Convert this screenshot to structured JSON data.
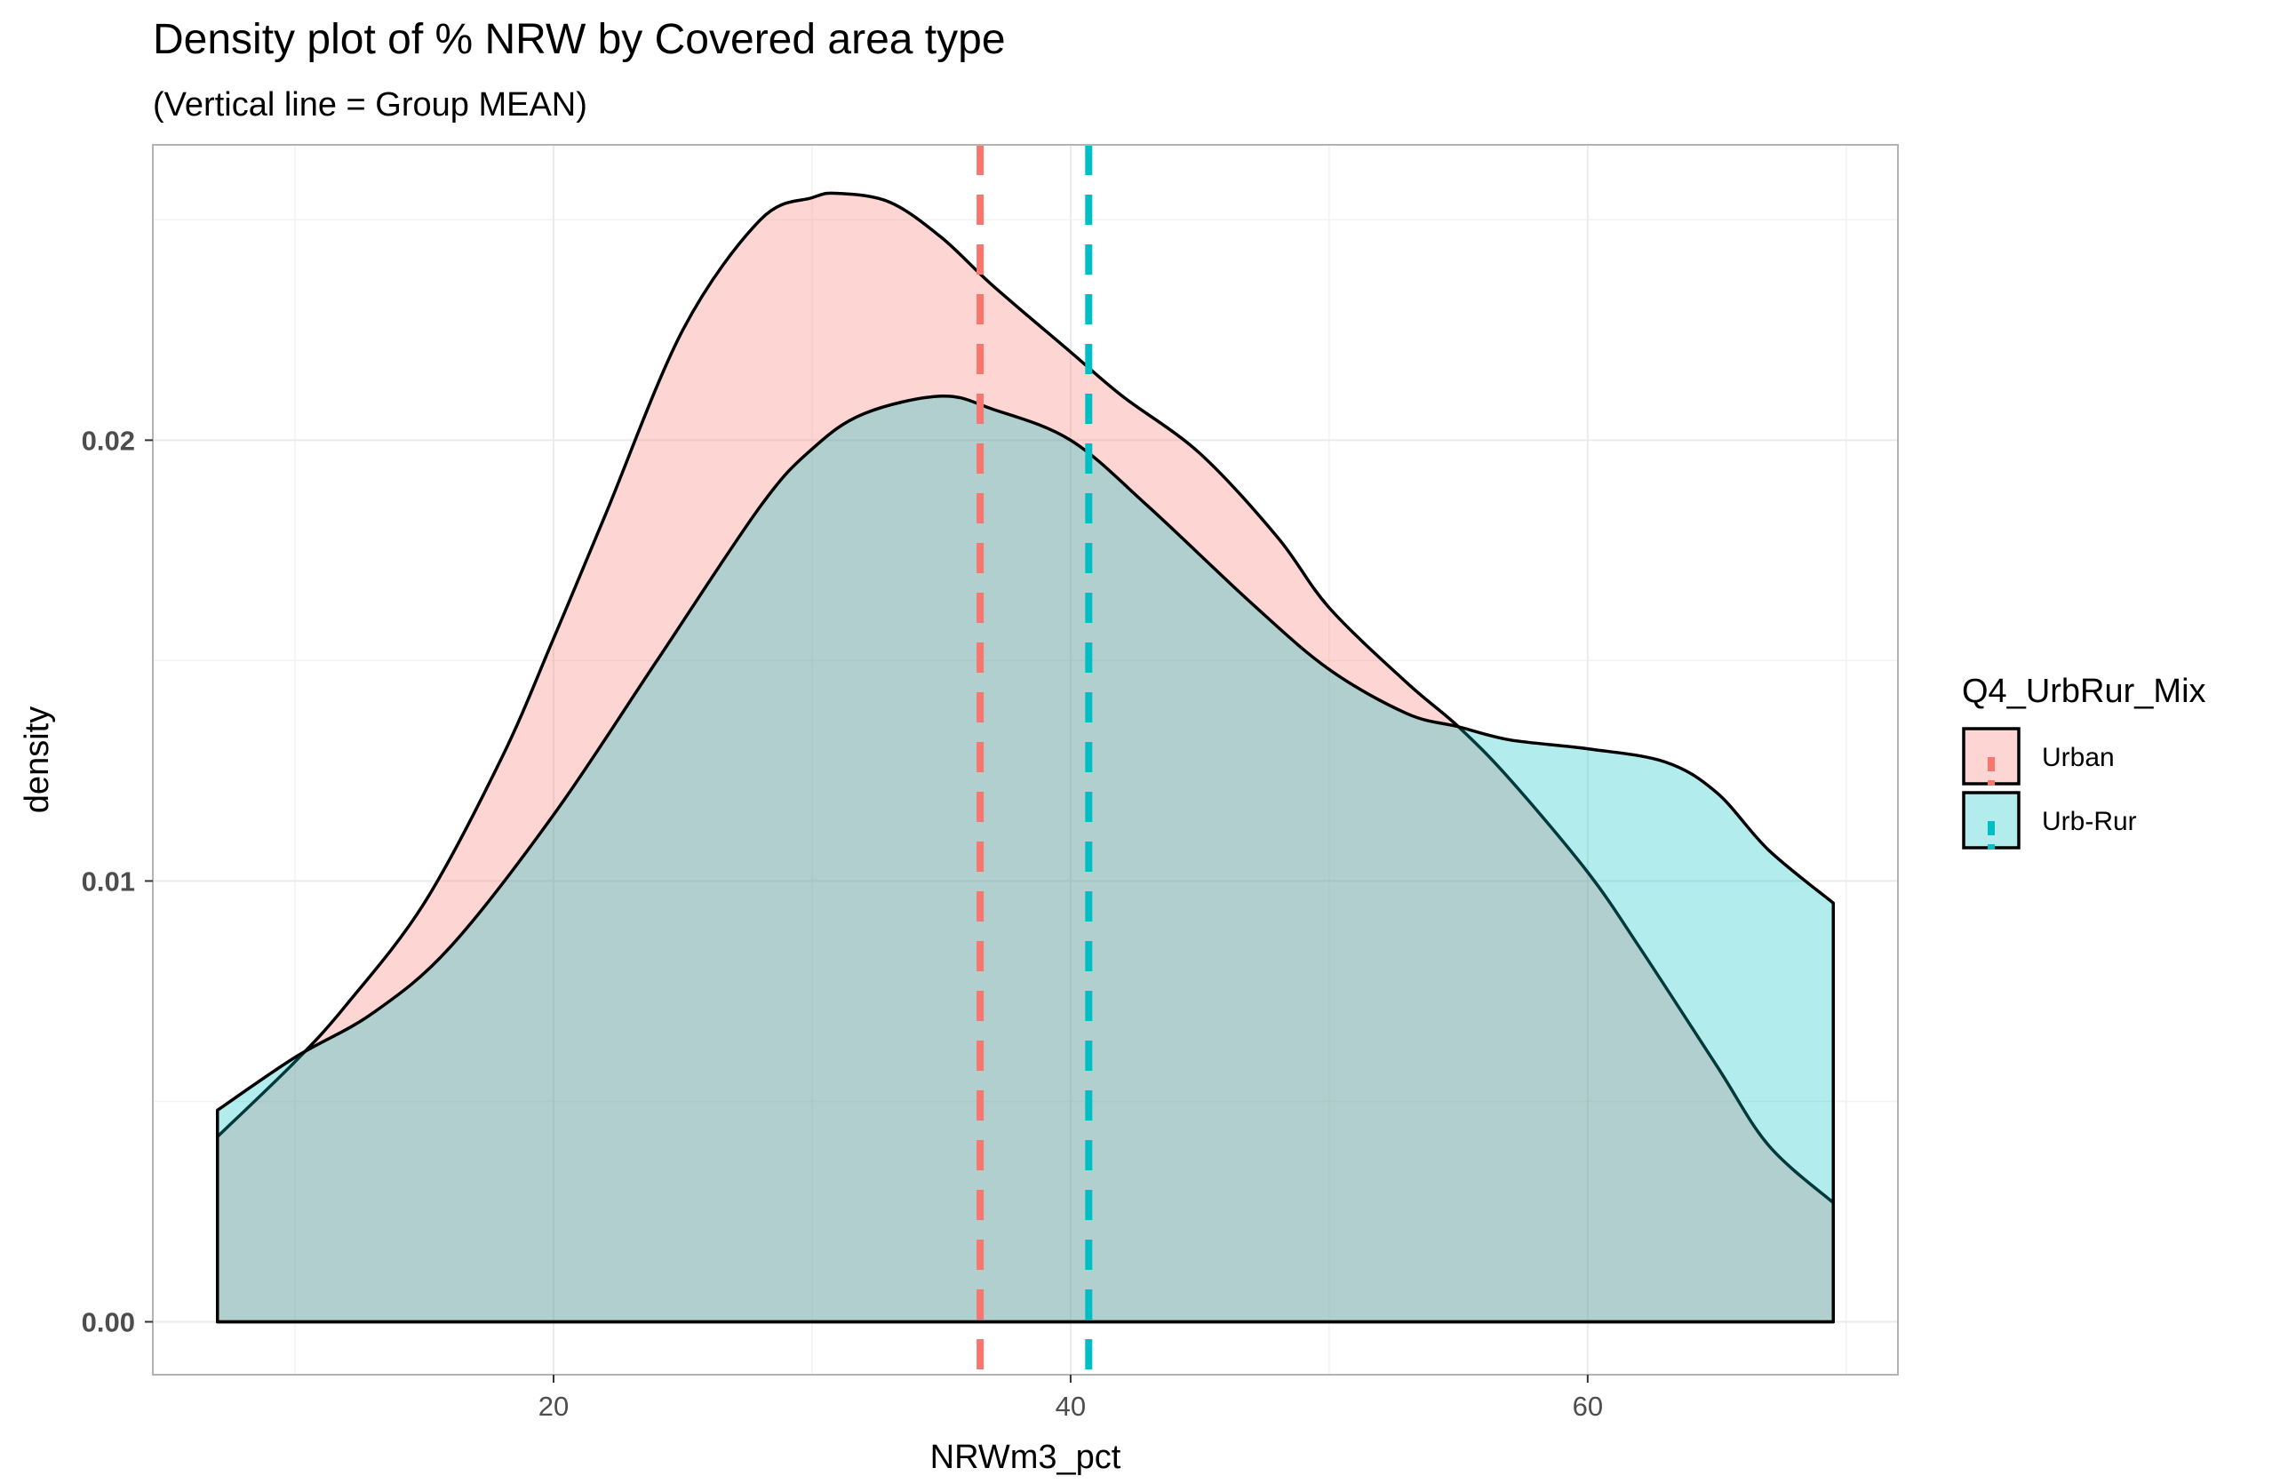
{
  "chart_data": {
    "type": "area",
    "title": "Density plot of % NRW by Covered area type",
    "subtitle": "(Vertical line = Group MEAN)",
    "xlabel": "NRWm3_pct",
    "ylabel": "density",
    "xlim": [
      4.5,
      72
    ],
    "ylim": [
      -0.0012,
      0.0267
    ],
    "x_ticks": [
      20,
      40,
      60
    ],
    "x_tick_labels": [
      "20",
      "40",
      "60"
    ],
    "y_ticks": [
      0,
      0.01,
      0.02
    ],
    "y_tick_labels": [
      "0.00",
      "0.01",
      "0.02"
    ],
    "grid": true,
    "legend_title": "Q4_UrbRur_Mix",
    "legend_position": "right",
    "series": [
      {
        "name": "Urban",
        "fill": "#F8766D",
        "line_color": "#F8766D",
        "mean": 36.5,
        "x": [
          7,
          10,
          12,
          15,
          18,
          20,
          22,
          25,
          28,
          30,
          31,
          33,
          35,
          37,
          40,
          42,
          45,
          48,
          50,
          53,
          55,
          57,
          60,
          62,
          65,
          67,
          69.5
        ],
        "y": [
          0.0042,
          0.0059,
          0.0072,
          0.0095,
          0.0128,
          0.0155,
          0.0183,
          0.0225,
          0.025,
          0.0255,
          0.0256,
          0.0254,
          0.0246,
          0.0235,
          0.022,
          0.021,
          0.0197,
          0.0178,
          0.0162,
          0.0145,
          0.0135,
          0.0123,
          0.0102,
          0.0085,
          0.0058,
          0.004,
          0.0027
        ]
      },
      {
        "name": "Urb-Rur",
        "fill": "#00BFC4",
        "line_color": "#00BFC4",
        "mean": 40.7,
        "x": [
          7,
          10,
          13,
          16,
          20,
          24,
          28,
          30,
          32,
          35,
          37,
          40,
          43,
          47,
          50,
          53,
          55,
          57,
          60,
          63,
          65,
          67,
          69.5
        ],
        "y": [
          0.0048,
          0.006,
          0.007,
          0.0085,
          0.0115,
          0.015,
          0.0185,
          0.0198,
          0.0206,
          0.021,
          0.0207,
          0.02,
          0.0185,
          0.0163,
          0.0148,
          0.0138,
          0.0135,
          0.0132,
          0.013,
          0.0127,
          0.012,
          0.0107,
          0.0095
        ]
      }
    ]
  }
}
